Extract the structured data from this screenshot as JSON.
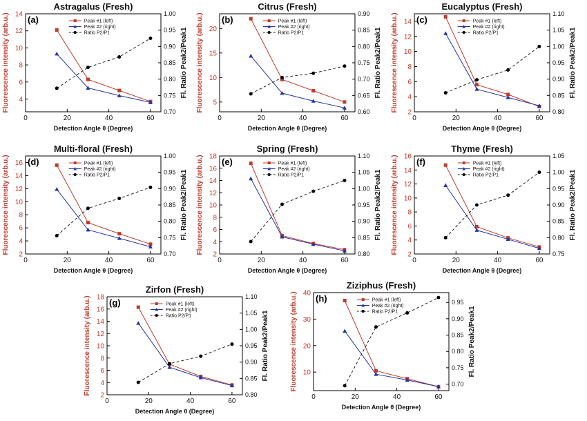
{
  "figure": {
    "x_axis_label": "Detection Angle θ (Degree)",
    "left_axis_label": "Fluorescence intensity (arb.u.)",
    "right_axis_label": "Fl. Ratio Peak2/Peak1",
    "legend": [
      "Peak #1 (left)",
      "Peak #2 (right)",
      "Ratio P2/P1"
    ],
    "colors": {
      "peak1": "#c0392b",
      "peak2": "#2233aa",
      "ratio": "#000000"
    }
  },
  "chart_data": [
    {
      "type": "line",
      "panel": "(a)",
      "title": "Astragalus (Fresh)",
      "x": [
        15,
        30,
        45,
        60
      ],
      "xlim": [
        0,
        65
      ],
      "xticks": [
        0,
        20,
        40,
        60
      ],
      "ylim_left": [
        2.5,
        14
      ],
      "yticks_left": [
        4,
        6,
        8,
        10,
        12,
        14
      ],
      "ylim_right": [
        0.7,
        1.0
      ],
      "yticks_right": [
        0.7,
        0.75,
        0.8,
        0.85,
        0.9,
        0.95,
        1.0
      ],
      "series": [
        {
          "name": "Peak #1 (left)",
          "axis": "left",
          "values": [
            12.1,
            6.3,
            5.0,
            3.7
          ]
        },
        {
          "name": "Peak #2 (right)",
          "axis": "left",
          "values": [
            9.3,
            5.3,
            4.4,
            3.6
          ]
        },
        {
          "name": "Ratio P2/P1",
          "axis": "right",
          "values": [
            0.772,
            0.836,
            0.868,
            0.925
          ]
        }
      ]
    },
    {
      "type": "line",
      "panel": "(b)",
      "title": "Citrus (Fresh)",
      "x": [
        15,
        30,
        45,
        60
      ],
      "xlim": [
        0,
        65
      ],
      "xticks": [
        0,
        20,
        40,
        60
      ],
      "ylim_left": [
        3,
        23
      ],
      "yticks_left": [
        5,
        10,
        15,
        20
      ],
      "ylim_right": [
        0.6,
        0.9
      ],
      "yticks_right": [
        0.6,
        0.65,
        0.7,
        0.75,
        0.8,
        0.85,
        0.9
      ],
      "series": [
        {
          "name": "Peak #1 (left)",
          "axis": "left",
          "values": [
            22,
            9.6,
            7.3,
            5.0
          ]
        },
        {
          "name": "Peak #2 (right)",
          "axis": "left",
          "values": [
            14.4,
            6.8,
            5.2,
            3.8
          ]
        },
        {
          "name": "Ratio P2/P1",
          "axis": "right",
          "values": [
            0.655,
            0.705,
            0.718,
            0.74
          ]
        }
      ]
    },
    {
      "type": "line",
      "panel": "(c)",
      "title": "Eucalyptus (Fresh)",
      "x": [
        15,
        30,
        45,
        60
      ],
      "xlim": [
        0,
        65
      ],
      "xticks": [
        0,
        20,
        40,
        60
      ],
      "ylim_left": [
        2,
        15
      ],
      "yticks_left": [
        2,
        4,
        6,
        8,
        10,
        12,
        14
      ],
      "ylim_right": [
        0.8,
        1.1
      ],
      "yticks_right": [
        0.8,
        0.85,
        0.9,
        0.95,
        1.0,
        1.05,
        1.1
      ],
      "series": [
        {
          "name": "Peak #1 (left)",
          "axis": "left",
          "values": [
            14.6,
            5.6,
            4.3,
            2.7
          ]
        },
        {
          "name": "Peak #2 (right)",
          "axis": "left",
          "values": [
            12.4,
            5.0,
            3.9,
            2.8
          ]
        },
        {
          "name": "Ratio P2/P1",
          "axis": "right",
          "values": [
            0.858,
            0.898,
            0.928,
            1.0
          ]
        }
      ]
    },
    {
      "type": "line",
      "panel": "(d)",
      "title": "Multi-floral (Fresh)",
      "x": [
        15,
        30,
        45,
        60
      ],
      "xlim": [
        0,
        65
      ],
      "xticks": [
        0,
        20,
        40,
        60
      ],
      "ylim_left": [
        2,
        17
      ],
      "yticks_left": [
        2,
        4,
        6,
        8,
        10,
        12,
        14,
        16
      ],
      "ylim_right": [
        0.7,
        1.0
      ],
      "yticks_right": [
        0.7,
        0.75,
        0.8,
        0.85,
        0.9,
        0.95,
        1.0
      ],
      "series": [
        {
          "name": "Peak #1 (left)",
          "axis": "left",
          "values": [
            15.6,
            6.8,
            5.1,
            3.5
          ]
        },
        {
          "name": "Peak #2 (right)",
          "axis": "left",
          "values": [
            11.9,
            5.7,
            4.4,
            3.1
          ]
        },
        {
          "name": "Ratio P2/P1",
          "axis": "right",
          "values": [
            0.756,
            0.84,
            0.87,
            0.904
          ]
        }
      ]
    },
    {
      "type": "line",
      "panel": "(e)",
      "title": "Spring (Fresh)",
      "x": [
        15,
        30,
        45,
        60
      ],
      "xlim": [
        0,
        65
      ],
      "xticks": [
        0,
        20,
        40,
        60
      ],
      "ylim_left": [
        2,
        18
      ],
      "yticks_left": [
        2,
        4,
        6,
        8,
        10,
        12,
        14,
        16,
        18
      ],
      "ylim_right": [
        0.8,
        1.1
      ],
      "yticks_right": [
        0.8,
        0.85,
        0.9,
        0.95,
        1.0,
        1.05,
        1.1
      ],
      "series": [
        {
          "name": "Peak #1 (left)",
          "axis": "left",
          "values": [
            16.8,
            5.0,
            3.7,
            2.7
          ]
        },
        {
          "name": "Peak #2 (right)",
          "axis": "left",
          "values": [
            14.3,
            4.8,
            3.6,
            2.5
          ]
        },
        {
          "name": "Ratio P2/P1",
          "axis": "right",
          "values": [
            0.838,
            0.952,
            0.992,
            1.025
          ]
        }
      ]
    },
    {
      "type": "line",
      "panel": "(f)",
      "title": "Thyme (Fresh)",
      "x": [
        15,
        30,
        45,
        60
      ],
      "xlim": [
        0,
        65
      ],
      "xticks": [
        0,
        20,
        40,
        60
      ],
      "ylim_left": [
        2,
        16
      ],
      "yticks_left": [
        2,
        4,
        6,
        8,
        10,
        12,
        14,
        16
      ],
      "ylim_right": [
        0.75,
        1.05
      ],
      "yticks_right": [
        0.75,
        0.8,
        0.85,
        0.9,
        0.95,
        1.0,
        1.05
      ],
      "series": [
        {
          "name": "Peak #1 (left)",
          "axis": "left",
          "values": [
            14.7,
            5.9,
            4.3,
            3.0
          ]
        },
        {
          "name": "Peak #2 (right)",
          "axis": "left",
          "values": [
            11.8,
            5.4,
            4.1,
            2.8
          ]
        },
        {
          "name": "Ratio P2/P1",
          "axis": "right",
          "values": [
            0.8,
            0.9,
            0.93,
            1.0
          ]
        }
      ]
    },
    {
      "type": "line",
      "panel": "(g)",
      "title": "Zirfon (Fresh)",
      "x": [
        15,
        30,
        45,
        60
      ],
      "xlim": [
        0,
        65
      ],
      "xticks": [
        0,
        20,
        40,
        60
      ],
      "ylim_left": [
        2,
        18
      ],
      "yticks_left": [
        2,
        4,
        6,
        8,
        10,
        12,
        14,
        16,
        18
      ],
      "ylim_right": [
        0.8,
        1.1
      ],
      "yticks_right": [
        0.8,
        0.85,
        0.9,
        0.95,
        1.0,
        1.05,
        1.1
      ],
      "series": [
        {
          "name": "Peak #1 (left)",
          "axis": "left",
          "values": [
            16.3,
            7.0,
            5.0,
            3.6
          ]
        },
        {
          "name": "Peak #2 (right)",
          "axis": "left",
          "values": [
            13.7,
            6.5,
            4.8,
            3.5
          ]
        },
        {
          "name": "Ratio P2/P1",
          "axis": "right",
          "values": [
            0.838,
            0.895,
            0.918,
            0.955
          ]
        }
      ]
    },
    {
      "type": "line",
      "panel": "(h)",
      "title": "Ziziphus (Fresh)",
      "x": [
        15,
        30,
        45,
        60
      ],
      "xlim": [
        0,
        65
      ],
      "xticks": [
        0,
        20,
        40,
        60
      ],
      "ylim_left": [
        3,
        40
      ],
      "yticks_left": [
        10,
        20,
        30,
        40
      ],
      "ylim_right": [
        0.68,
        0.98
      ],
      "yticks_right": [
        0.7,
        0.75,
        0.8,
        0.85,
        0.9,
        0.95
      ],
      "series": [
        {
          "name": "Peak #1 (left)",
          "axis": "left",
          "values": [
            37,
            10.5,
            7.5,
            4.5
          ]
        },
        {
          "name": "Peak #2 (right)",
          "axis": "left",
          "values": [
            25.5,
            9.2,
            7.0,
            4.5
          ]
        },
        {
          "name": "Ratio P2/P1",
          "axis": "right",
          "values": [
            0.695,
            0.875,
            0.918,
            0.965
          ]
        }
      ]
    }
  ]
}
